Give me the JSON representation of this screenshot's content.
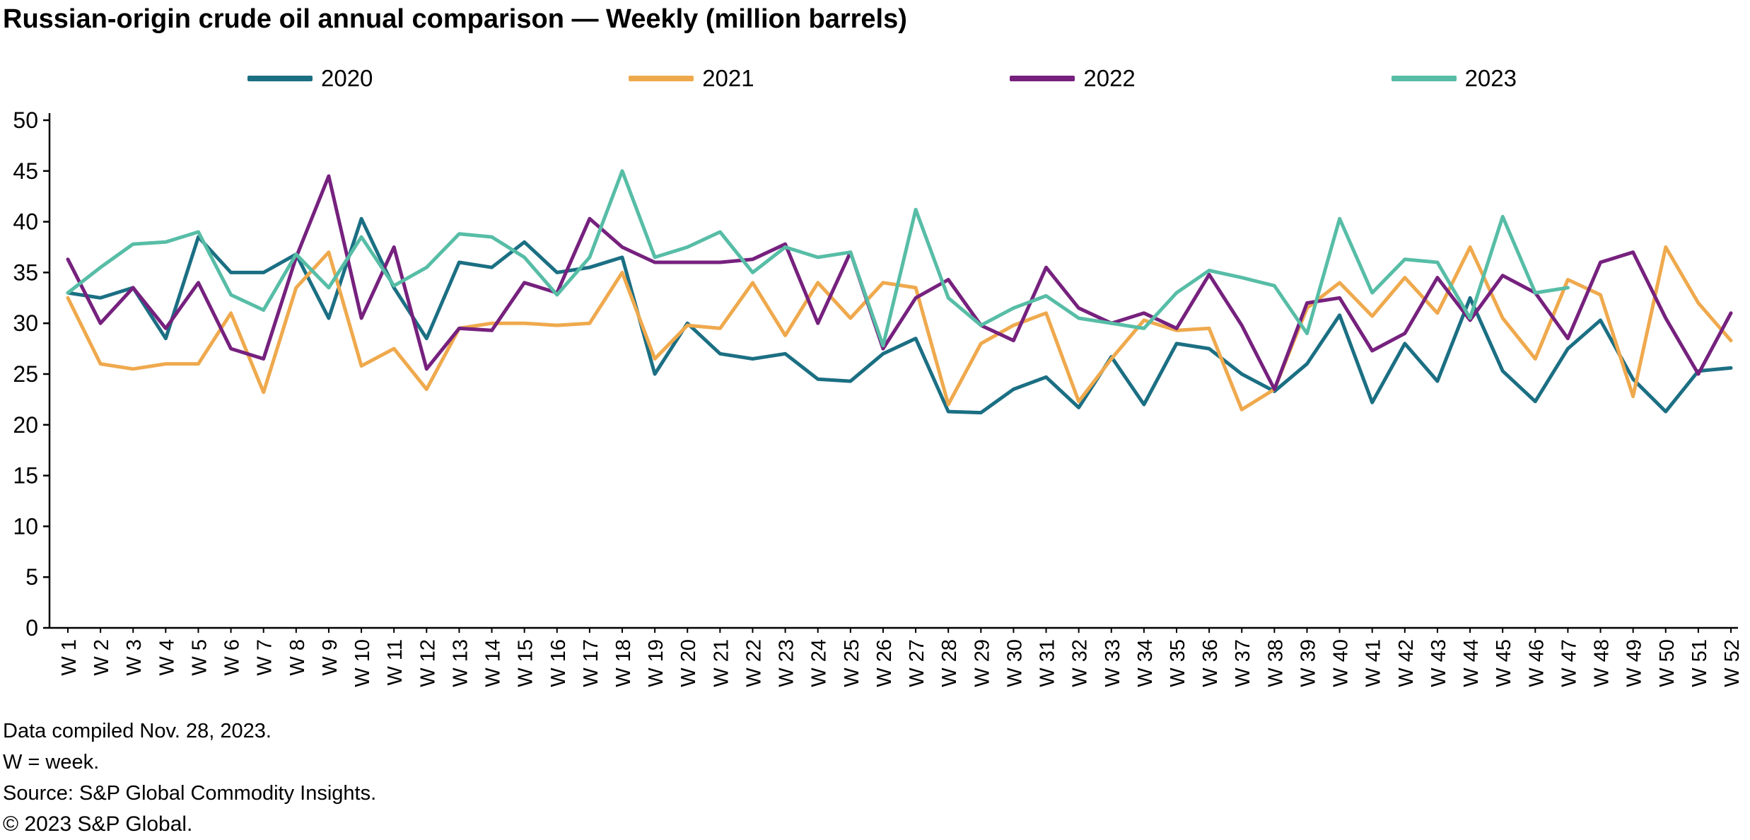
{
  "title": "Russian-origin crude oil annual comparison — Weekly (million barrels)",
  "footer": {
    "compiled": "Data compiled Nov. 28, 2023.",
    "note": "W = week.",
    "source": "Source: S&P Global Commodity Insights.",
    "copyright": "© 2023 S&P Global."
  },
  "chart_data": {
    "type": "line",
    "title": "Russian-origin crude oil annual comparison — Weekly (million barrels)",
    "xlabel": "",
    "ylabel": "",
    "ylim": [
      0,
      50
    ],
    "ytick_step": 5,
    "grid": false,
    "legend_position": "top",
    "categories": [
      "W 1",
      "W 2",
      "W 3",
      "W 4",
      "W 5",
      "W 6",
      "W 7",
      "W 8",
      "W 9",
      "W 10",
      "W 11",
      "W 12",
      "W 13",
      "W 14",
      "W 15",
      "W 16",
      "W 17",
      "W 18",
      "W 19",
      "W 20",
      "W 21",
      "W 22",
      "W 23",
      "W 24",
      "W 25",
      "W 26",
      "W 27",
      "W 28",
      "W 29",
      "W 30",
      "W 31",
      "W 32",
      "W 33",
      "W 34",
      "W 35",
      "W 36",
      "W 37",
      "W 38",
      "W 39",
      "W 40",
      "W 41",
      "W 42",
      "W 43",
      "W 44",
      "W 45",
      "W 46",
      "W 47",
      "W 48",
      "W 49",
      "W 50",
      "W 51",
      "W 52"
    ],
    "series": [
      {
        "name": "2020",
        "color": "#1b6f83",
        "values": [
          33,
          32.5,
          33.5,
          28.5,
          38.5,
          35,
          35,
          36.8,
          30.5,
          40.3,
          33.5,
          28.5,
          36,
          35.5,
          38,
          35,
          35.5,
          36.5,
          25,
          30,
          27,
          26.5,
          27,
          24.5,
          24.3,
          27,
          28.5,
          21.3,
          21.2,
          23.5,
          24.7,
          21.7,
          26.7,
          22,
          28,
          27.5,
          25,
          23.3,
          26,
          30.8,
          22.2,
          28,
          24.3,
          32.5,
          25.3,
          22.3,
          27.5,
          30.3,
          24.5,
          21.3,
          25.3,
          25.6
        ]
      },
      {
        "name": "2021",
        "color": "#efa94d",
        "values": [
          32.5,
          26,
          25.5,
          26,
          26,
          31,
          23.2,
          33.5,
          37,
          25.8,
          27.5,
          23.5,
          29.5,
          30,
          30,
          29.8,
          30,
          35,
          26.5,
          29.8,
          29.5,
          34,
          28.8,
          34,
          30.5,
          34,
          33.5,
          22,
          28,
          29.8,
          31,
          22.3,
          26.5,
          30.3,
          29.3,
          29.5,
          21.5,
          23.5,
          31.5,
          34,
          30.7,
          34.5,
          31,
          37.5,
          30.5,
          26.5,
          34.3,
          32.8,
          22.8,
          37.5,
          32,
          28.3
        ]
      },
      {
        "name": "2022",
        "color": "#76217e",
        "values": [
          36.3,
          30,
          33.5,
          29.5,
          34,
          27.5,
          26.5,
          36.5,
          44.5,
          30.5,
          37.5,
          25.5,
          29.5,
          29.3,
          34,
          33,
          40.3,
          37.5,
          36,
          36,
          36,
          36.3,
          37.8,
          30,
          37,
          27.5,
          32.5,
          34.3,
          29.8,
          28.3,
          35.5,
          31.5,
          30,
          31,
          29.5,
          34.8,
          29.8,
          23.5,
          32,
          32.5,
          27.3,
          29,
          34.5,
          30.3,
          34.7,
          33,
          28.5,
          36,
          37,
          30.5,
          25,
          31
        ]
      },
      {
        "name": "2023",
        "color": "#57bda6",
        "values": [
          33,
          35.5,
          37.8,
          38,
          39,
          32.8,
          31.3,
          36.8,
          33.5,
          38.5,
          33.7,
          35.5,
          38.8,
          38.5,
          36.5,
          32.8,
          36.5,
          45,
          36.5,
          37.5,
          39,
          35,
          37.5,
          36.5,
          37,
          27.8,
          41.2,
          32.5,
          29.8,
          31.5,
          32.7,
          30.5,
          30,
          29.5,
          33,
          35.2,
          34.5,
          33.7,
          29,
          40.3,
          33,
          36.3,
          36,
          30.5,
          40.5,
          33,
          33.5,
          null,
          null,
          null,
          null,
          null
        ]
      }
    ]
  }
}
